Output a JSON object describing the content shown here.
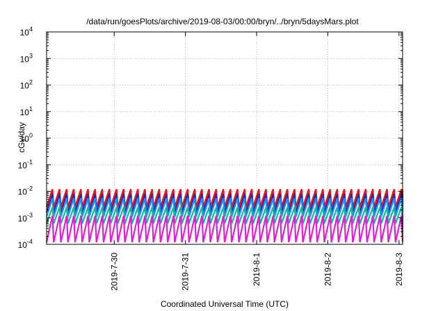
{
  "chart_data": {
    "type": "line",
    "title": "/data/run/goesPlots/archive/2019-08-03/00:00/bryn/../bryn/5daysMars.plot",
    "xlabel": "Coordinated Universal Time (UTC)",
    "ylabel": "cGy/day",
    "yscale": "log",
    "ylim": [
      0.0001,
      10000
    ],
    "xlim": [
      -0.95,
      4.05
    ],
    "x_ticks": [
      {
        "value": 0,
        "label": "2019-7-30"
      },
      {
        "value": 1,
        "label": "2019-7-31"
      },
      {
        "value": 2,
        "label": "2019-8-1"
      },
      {
        "value": 3,
        "label": "2019-8-2"
      },
      {
        "value": 4,
        "label": "2019-8-3"
      }
    ],
    "y_ticks": [
      {
        "value": 0.0001,
        "base": "10",
        "exp": "-4"
      },
      {
        "value": 0.001,
        "base": "10",
        "exp": "-3"
      },
      {
        "value": 0.01,
        "base": "10",
        "exp": "-2"
      },
      {
        "value": 0.1,
        "base": "10",
        "exp": "-1"
      },
      {
        "value": 1,
        "base": "10",
        "exp": "0"
      },
      {
        "value": 10,
        "base": "10",
        "exp": "1"
      },
      {
        "value": 100,
        "base": "10",
        "exp": "2"
      },
      {
        "value": 1000,
        "base": "10",
        "exp": "3"
      },
      {
        "value": 10000,
        "base": "10",
        "exp": "4"
      }
    ],
    "grid": true,
    "sawtooth_period_days": 0.1,
    "series": [
      {
        "color": "#e8141c",
        "peak": 0.012,
        "trough": 0.0025,
        "dip_phase": 0.05
      },
      {
        "color": "#2a2a9e",
        "peak": 0.008,
        "trough": 0.0016,
        "dip_phase": 0.05
      },
      {
        "color": "#1e90ff",
        "peak": 0.0055,
        "trough": 0.0011,
        "dip_phase": 0.05
      },
      {
        "color": "#17b5a0",
        "peak": 0.0025,
        "trough": 0.0006,
        "dip_phase": 0.05
      },
      {
        "color": "#e020d0",
        "peak": 0.0012,
        "trough": 0.00012,
        "dip_phase": 0.05
      }
    ]
  }
}
